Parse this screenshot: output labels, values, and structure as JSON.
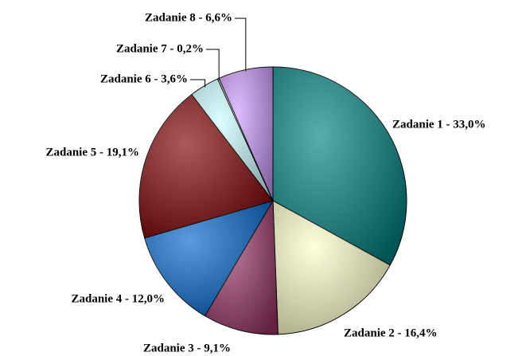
{
  "chart_data": {
    "type": "pie",
    "categories": [
      "Zadanie 1",
      "Zadanie 2",
      "Zadanie 3",
      "Zadanie 4",
      "Zadanie 5",
      "Zadanie 6",
      "Zadanie 7",
      "Zadanie 8"
    ],
    "values": [
      33.0,
      16.4,
      9.1,
      12.0,
      19.1,
      3.6,
      0.2,
      6.6
    ],
    "value_labels": [
      "Zadanie 1 - 33,0%",
      "Zadanie 2 - 16,4%",
      "Zadanie 3 - 9,1%",
      "Zadanie 4 - 12,0%",
      "Zadanie 5 - 19,1%",
      "Zadanie 6 - 3,6%",
      "Zadanie 7 - 0,2%",
      "Zadanie 8 - 6,6%"
    ],
    "colors": [
      "#008080",
      "#ffffcc",
      "#993366",
      "#0066cc",
      "#800000",
      "#ccffff",
      "#ffffff",
      "#cc99ff"
    ]
  }
}
